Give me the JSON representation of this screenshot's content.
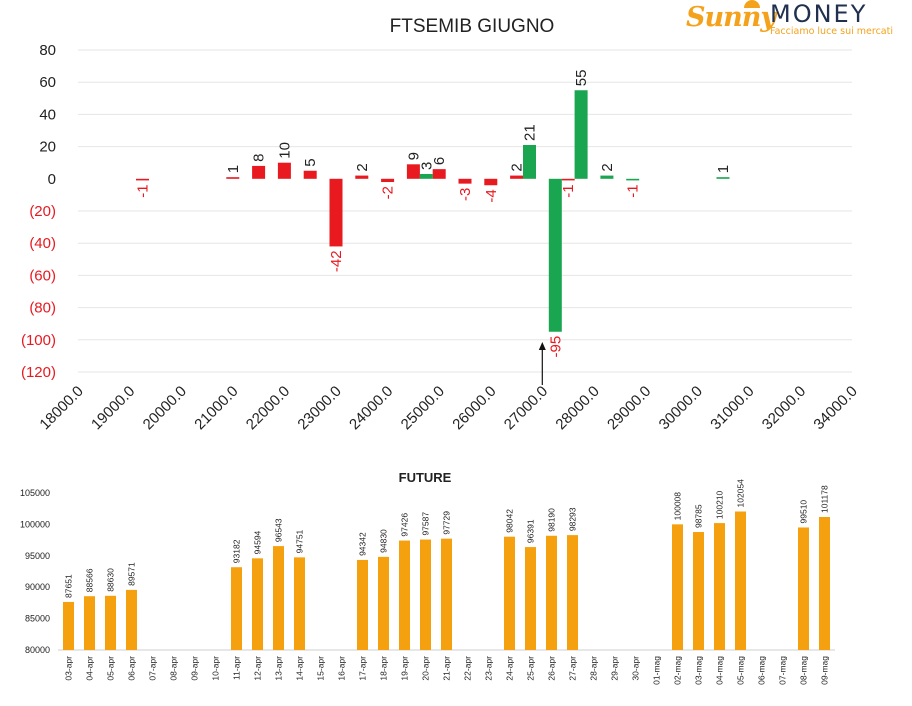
{
  "logo": {
    "word1": "Sunny",
    "word2": "MONEY",
    "tagline": "Facciamo luce sui mercati"
  },
  "colors": {
    "negative": "#e8191f",
    "positive": "#1aa550",
    "future": "#f5a00f",
    "grid": "#e6e6e6"
  },
  "chart_data": [
    {
      "type": "bar",
      "title": "FTSEMIB GIUGNO",
      "ylim": [
        -120,
        80
      ],
      "yticks": [
        80,
        60,
        40,
        20,
        0,
        -20,
        -40,
        -60,
        -80,
        -100,
        -120
      ],
      "ytick_labels": [
        "80",
        "60",
        "40",
        "20",
        "0",
        "(20)",
        "(40)",
        "(60)",
        "(80)",
        "(100)",
        "(120)"
      ],
      "xlim": [
        18000,
        34000
      ],
      "xtick_labels": [
        "18000.0",
        "19000.0",
        "20000.0",
        "21000.0",
        "22000.0",
        "23000.0",
        "24000.0",
        "25000.0",
        "26000.0",
        "27000.0",
        "28000.0",
        "29000.0",
        "30000.0",
        "31000.0",
        "32000.0",
        "34000.0"
      ],
      "grid": true,
      "legend": "none",
      "arrow_marker_x": 27250,
      "series": [
        {
          "color_key": "negative",
          "points": [
            {
              "x": 19250,
              "value": -1
            },
            {
              "x": 21000,
              "value": 1
            },
            {
              "x": 21500,
              "value": 8
            },
            {
              "x": 22000,
              "value": 10
            },
            {
              "x": 22500,
              "value": 5
            },
            {
              "x": 23000,
              "value": -42
            },
            {
              "x": 23500,
              "value": 2
            },
            {
              "x": 24000,
              "value": -2
            },
            {
              "x": 24500,
              "value": 9
            },
            {
              "x": 25000,
              "value": 6
            },
            {
              "x": 25500,
              "value": -3
            },
            {
              "x": 26000,
              "value": -4
            },
            {
              "x": 26500,
              "value": 2
            },
            {
              "x": 27500,
              "value": -1
            }
          ]
        },
        {
          "color_key": "positive",
          "points": [
            {
              "x": 24750,
              "value": 3
            },
            {
              "x": 26750,
              "value": 21
            },
            {
              "x": 27250,
              "value": -95
            },
            {
              "x": 27750,
              "value": 55
            },
            {
              "x": 28250,
              "value": 2
            },
            {
              "x": 28750,
              "value": -1
            },
            {
              "x": 30500,
              "value": 1
            }
          ]
        }
      ]
    },
    {
      "type": "bar",
      "title": "FUTURE",
      "ylim": [
        80000,
        105000
      ],
      "yticks": [
        80000,
        85000,
        90000,
        95000,
        100000,
        105000
      ],
      "ytick_labels": [
        "80000",
        "85000",
        "90000",
        "95000",
        "100000",
        "105000"
      ],
      "grid": false,
      "legend": "none",
      "categories": [
        "03-apr",
        "04-apr",
        "05-apr",
        "06-apr",
        "07-apr",
        "08-apr",
        "09-apr",
        "10-apr",
        "11-apr",
        "12-apr",
        "13-apr",
        "14-apr",
        "15-apr",
        "16-apr",
        "17-apr",
        "18-apr",
        "19-apr",
        "20-apr",
        "21-apr",
        "22-apr",
        "23-apr",
        "24-apr",
        "25-apr",
        "26-apr",
        "27-apr",
        "28-apr",
        "29-apr",
        "30-apr",
        "01-mag",
        "02-mag",
        "03-mag",
        "04-mag",
        "05-mag",
        "06-mag",
        "07-mag",
        "08-mag",
        "09-mag"
      ],
      "values": [
        87651,
        88566,
        88630,
        89571,
        null,
        null,
        null,
        null,
        93182,
        94594,
        96543,
        94751,
        null,
        null,
        94342,
        94830,
        97426,
        97587,
        97729,
        null,
        null,
        98042,
        96391,
        98190,
        98293,
        null,
        null,
        null,
        null,
        100008,
        98785,
        100210,
        102054,
        null,
        null,
        99510,
        101178
      ]
    }
  ]
}
